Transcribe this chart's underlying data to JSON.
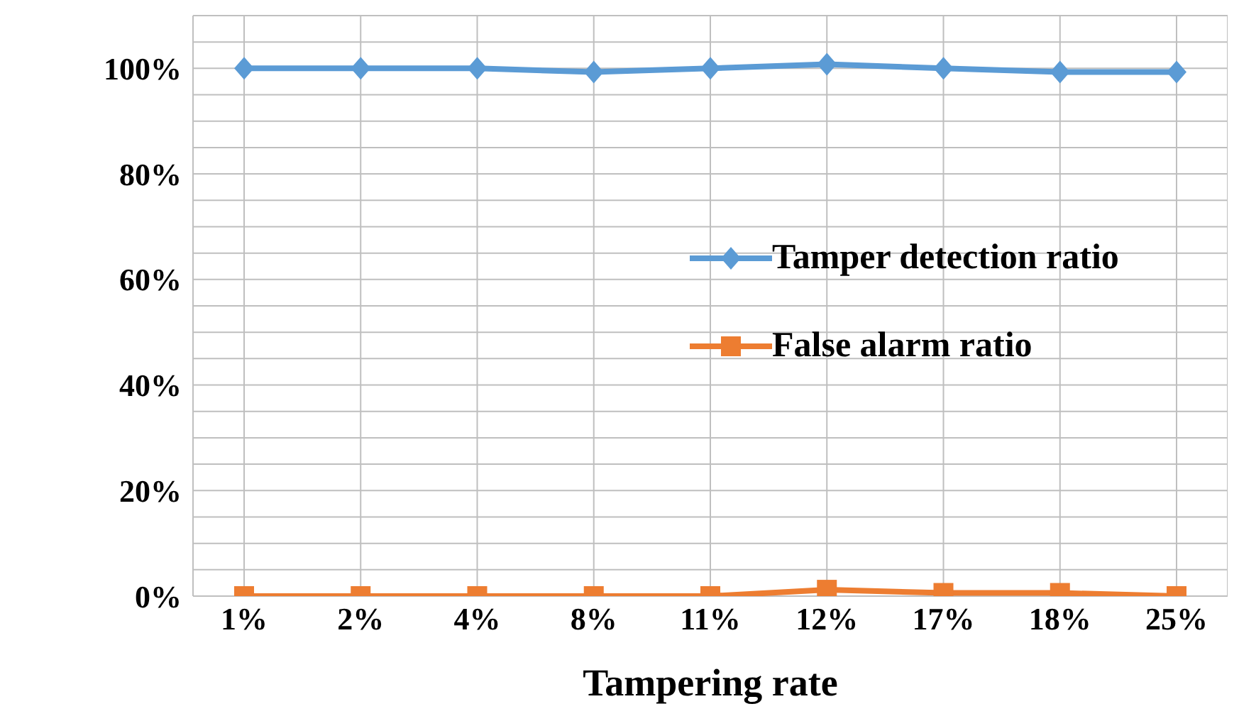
{
  "chart_data": {
    "type": "line",
    "xlabel": "Tampering rate",
    "categories": [
      "1%",
      "2%",
      "4%",
      "8%",
      "11%",
      "12%",
      "17%",
      "18%",
      "25%"
    ],
    "series": [
      {
        "name": "Tamper detection ratio",
        "color": "#5b9bd5",
        "marker": "diamond",
        "values": [
          100,
          100,
          100,
          99.3,
          100,
          100.8,
          100,
          99.3,
          99.3
        ]
      },
      {
        "name": "False alarm ratio",
        "color": "#ed7d31",
        "marker": "square",
        "values": [
          0,
          0,
          0,
          0,
          0,
          1.2,
          0.6,
          0.6,
          0
        ]
      }
    ],
    "ylim": [
      0,
      110
    ],
    "yticks": [
      {
        "value": 0,
        "label": "0%"
      },
      {
        "value": 5,
        "label": null
      },
      {
        "value": 10,
        "label": null
      },
      {
        "value": 15,
        "label": null
      },
      {
        "value": 20,
        "label": "20%"
      },
      {
        "value": 25,
        "label": null
      },
      {
        "value": 30,
        "label": null
      },
      {
        "value": 35,
        "label": null
      },
      {
        "value": 40,
        "label": "40%"
      },
      {
        "value": 45,
        "label": null
      },
      {
        "value": 50,
        "label": null
      },
      {
        "value": 55,
        "label": null
      },
      {
        "value": 60,
        "label": "60%"
      },
      {
        "value": 65,
        "label": null
      },
      {
        "value": 70,
        "label": null
      },
      {
        "value": 75,
        "label": null
      },
      {
        "value": 80,
        "label": "80%"
      },
      {
        "value": 85,
        "label": null
      },
      {
        "value": 90,
        "label": null
      },
      {
        "value": 95,
        "label": null
      },
      {
        "value": 100,
        "label": "100%"
      },
      {
        "value": 105,
        "label": null
      },
      {
        "value": 110,
        "label": null
      }
    ],
    "grid": true,
    "legend": "right"
  }
}
